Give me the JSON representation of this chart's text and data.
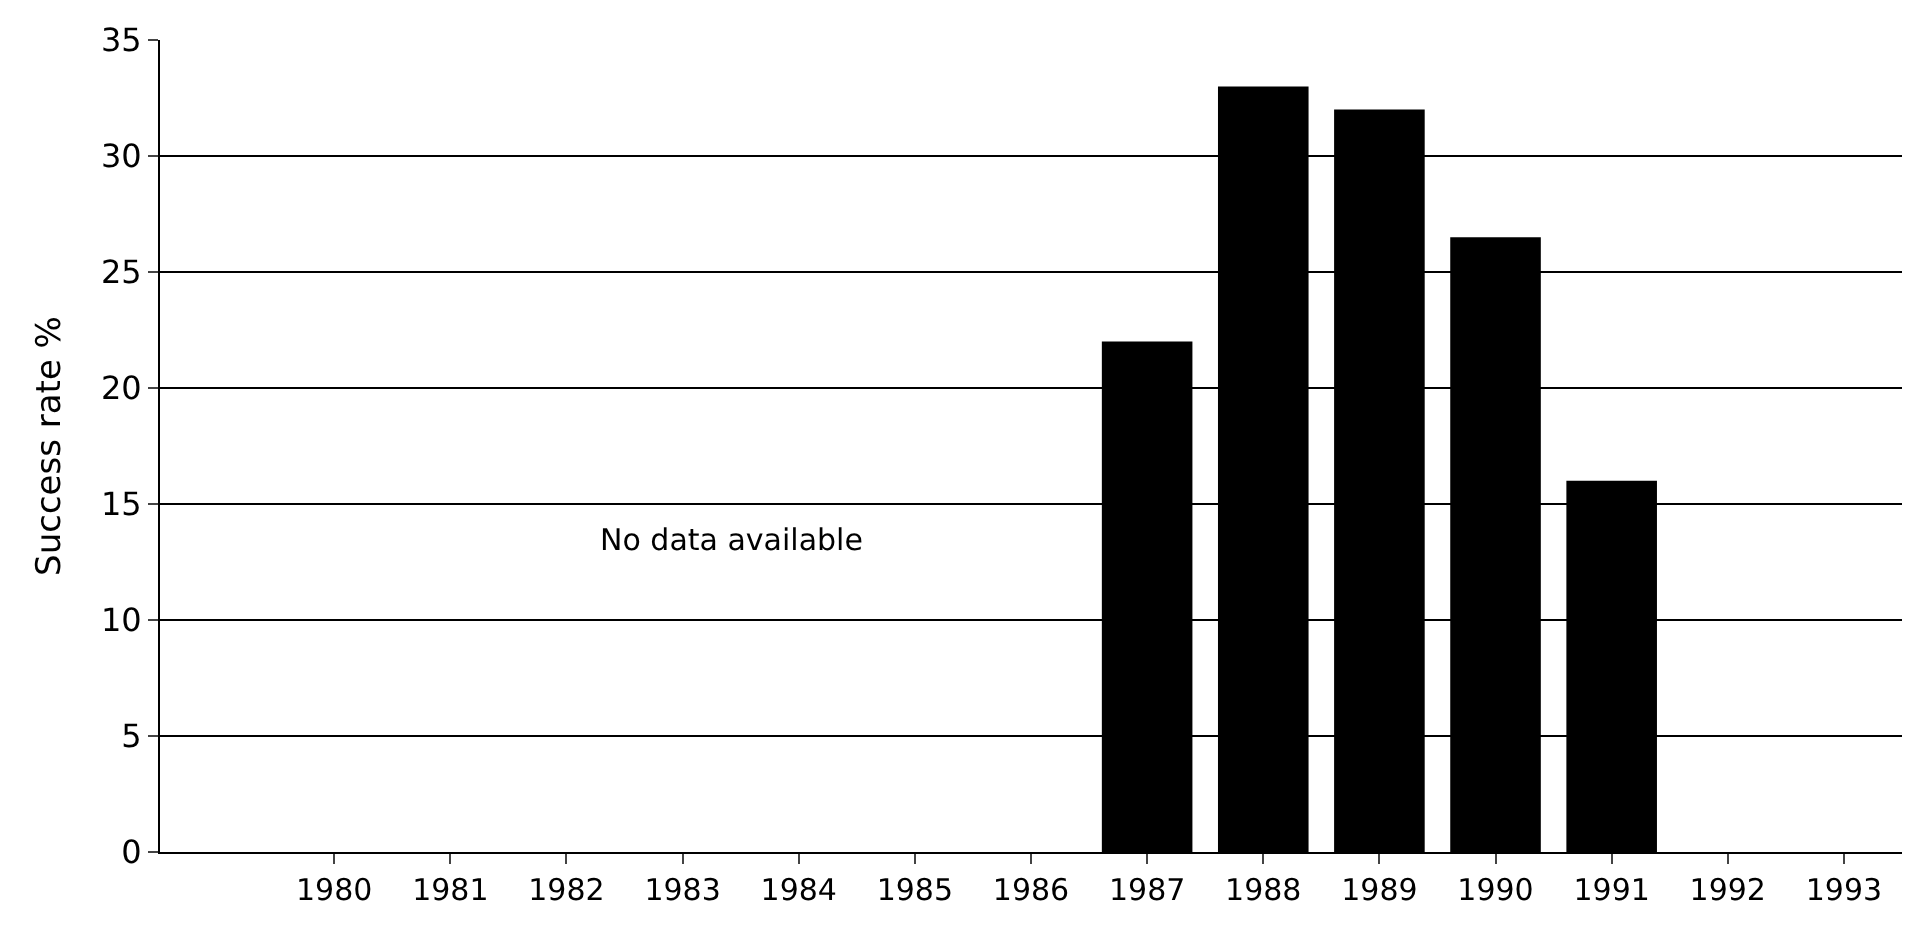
{
  "chart_data": {
    "type": "bar",
    "ylabel": "Success rate %",
    "categories": [
      null,
      "1980",
      "1981",
      "1982",
      "1983",
      "1984",
      "1985",
      "1986",
      "1987",
      "1988",
      "1989",
      "1990",
      "1991",
      "1992",
      "1993"
    ],
    "values": [
      0,
      null,
      null,
      null,
      null,
      null,
      null,
      null,
      22,
      33,
      32,
      26.5,
      16,
      null,
      null
    ],
    "color": "#000000",
    "ylim": [
      0,
      35
    ],
    "yticks": [
      0,
      5,
      10,
      15,
      20,
      25,
      30,
      35
    ],
    "grid": "y",
    "legend": false,
    "annotations": [
      "No data available"
    ]
  }
}
